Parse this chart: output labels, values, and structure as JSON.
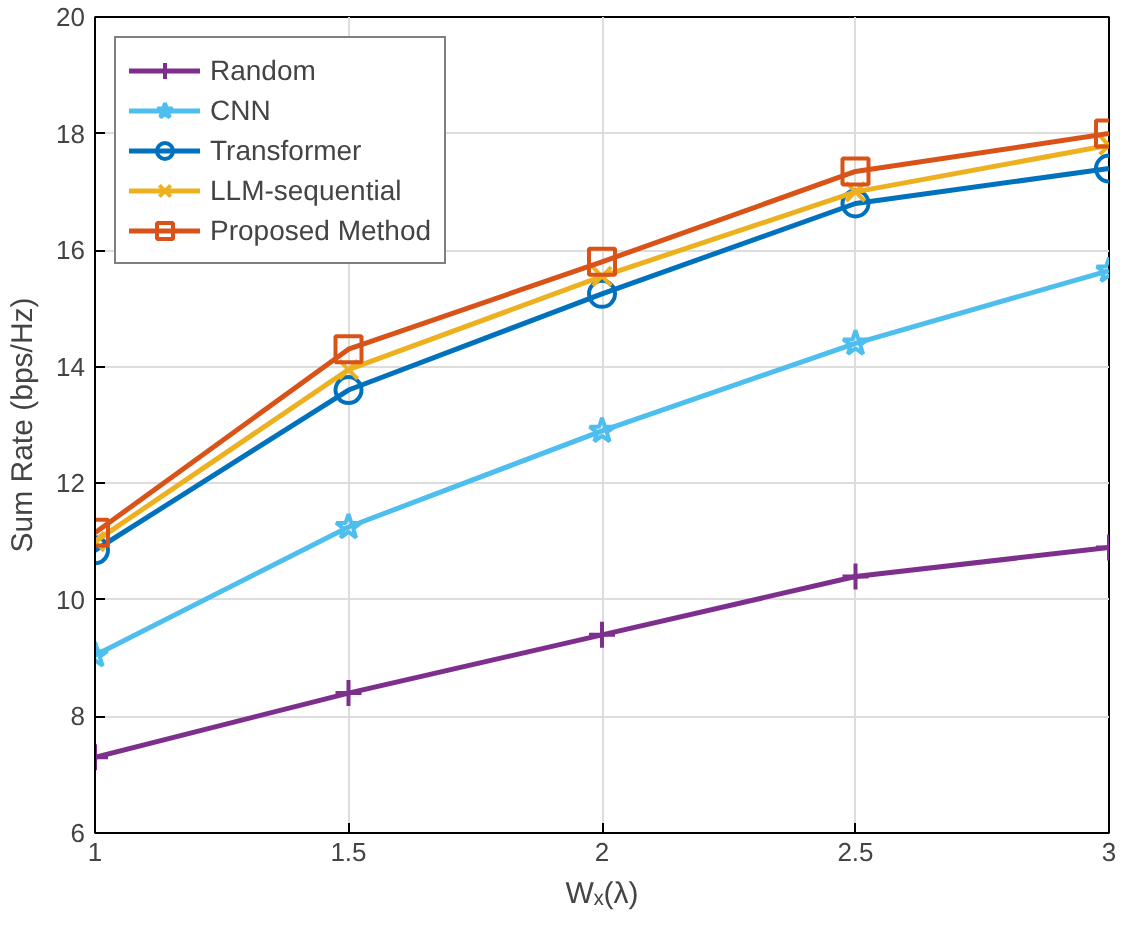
{
  "chart_data": {
    "type": "line",
    "xlabel": "Wₓ(λ)",
    "ylabel": "Sum Rate (bps/Hz)",
    "x": [
      1,
      1.5,
      2,
      2.5,
      3
    ],
    "xlim": [
      1,
      3
    ],
    "xticks": [
      1,
      1.5,
      2,
      2.5,
      3
    ],
    "ylim": [
      6,
      20
    ],
    "yticks": [
      6,
      8,
      10,
      12,
      14,
      16,
      18,
      20
    ],
    "grid": true,
    "legend": "top left",
    "line_style": "solid",
    "series": [
      {
        "name": "Random",
        "color": "#7e2f8e",
        "marker": "cross",
        "values": [
          7.3,
          8.4,
          9.4,
          10.4,
          10.9
        ]
      },
      {
        "name": "CNN",
        "color": "#4dbeee",
        "marker": "star",
        "values": [
          9.05,
          11.25,
          12.9,
          14.4,
          15.65
        ]
      },
      {
        "name": "Transformer",
        "color": "#0072bd",
        "marker": "circle",
        "values": [
          10.85,
          13.6,
          15.25,
          16.8,
          17.4
        ]
      },
      {
        "name": "LLM-sequential",
        "color": "#edb120",
        "marker": "x",
        "values": [
          11.0,
          13.95,
          15.55,
          17.0,
          17.8
        ]
      },
      {
        "name": "Proposed Method",
        "color": "#d95319",
        "marker": "square",
        "values": [
          11.15,
          14.3,
          15.8,
          17.35,
          18.0
        ]
      }
    ]
  }
}
